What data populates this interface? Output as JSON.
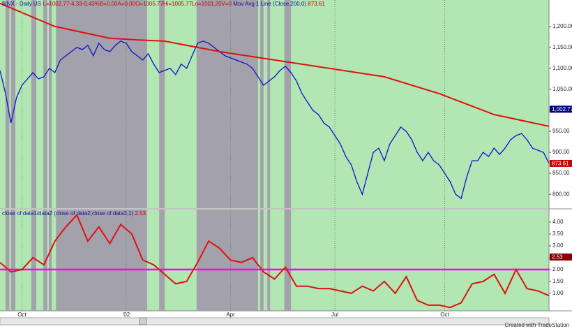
{
  "header": {
    "quote": "- Daily  US",
    "items": [
      "L=1002.77",
      "-4.33",
      "-0.43%",
      "B=0.00",
      "A=0.00",
      "O=1005.77",
      "Hi=1005.77",
      "Lo=1001.20",
      "V=0"
    ],
    "last": "873.61"
  },
  "footer": "Created with TradeStation",
  "chart_data": [
    {
      "type": "line",
      "xlim": [
        0,
        100
      ],
      "ylim": [
        767,
        1263
      ],
      "yticks": [
        {
          "value": 800,
          "label": "800.00"
        },
        {
          "value": 850,
          "label": "850.00"
        },
        {
          "value": 900,
          "label": "900.00"
        },
        {
          "value": 950,
          "label": "950.00"
        },
        {
          "value": 1000,
          "label": "1,000.00"
        },
        {
          "value": 1050,
          "label": "1,050.00"
        },
        {
          "value": 1100,
          "label": "1,100.00"
        },
        {
          "value": 1150,
          "label": "1,150.00"
        },
        {
          "value": 1200,
          "label": "1,200.00"
        }
      ],
      "shaded": [
        [
          1.0,
          1.7
        ],
        [
          2.0,
          2.8
        ],
        [
          5.7,
          6.6
        ],
        [
          7.9,
          8.6
        ],
        [
          8.9,
          9.4
        ],
        [
          10.2,
          26.8
        ],
        [
          29.0,
          30.0
        ],
        [
          35.8,
          47.0
        ],
        [
          47.4,
          48.0
        ],
        [
          48.7,
          49.2
        ],
        [
          51.8,
          53.0
        ]
      ],
      "series": [
        {
          "name": "$INX",
          "color": "#1010d0",
          "x": [
            0,
            1,
            2,
            3,
            4,
            5,
            6,
            7,
            8,
            9,
            10,
            11,
            12,
            13,
            14,
            15,
            16,
            17,
            18,
            19,
            20,
            21,
            22,
            23,
            24,
            25,
            26,
            27,
            28,
            29,
            30,
            31,
            32,
            33,
            34,
            35,
            36,
            37,
            38,
            39,
            40,
            41,
            42,
            43,
            44,
            45,
            46,
            47,
            48,
            49,
            50,
            51,
            52,
            53,
            54,
            55,
            56,
            57,
            58,
            59,
            60,
            61,
            62,
            63,
            64,
            65,
            66,
            67,
            68,
            69,
            70,
            71,
            72,
            73,
            74,
            75,
            76,
            77,
            78,
            79,
            80,
            81,
            82,
            83,
            84,
            85,
            86,
            87,
            88,
            89,
            90,
            91,
            92,
            93,
            94,
            95,
            96,
            97,
            98,
            99,
            100
          ],
          "values": [
            1095,
            1040,
            970,
            1030,
            1060,
            1075,
            1090,
            1075,
            1080,
            1100,
            1090,
            1120,
            1130,
            1140,
            1150,
            1145,
            1155,
            1130,
            1160,
            1145,
            1140,
            1155,
            1165,
            1160,
            1140,
            1130,
            1120,
            1135,
            1110,
            1090,
            1095,
            1100,
            1085,
            1110,
            1100,
            1130,
            1160,
            1165,
            1160,
            1150,
            1140,
            1130,
            1125,
            1120,
            1115,
            1110,
            1100,
            1080,
            1060,
            1070,
            1080,
            1095,
            1105,
            1090,
            1070,
            1040,
            1020,
            1000,
            990,
            970,
            960,
            940,
            920,
            890,
            870,
            830,
            800,
            850,
            900,
            910,
            880,
            920,
            940,
            960,
            950,
            930,
            900,
            880,
            900,
            880,
            870,
            850,
            830,
            800,
            790,
            840,
            880,
            880,
            900,
            890,
            910,
            895,
            910,
            930,
            940,
            945,
            930,
            910,
            905,
            900,
            874
          ]
        },
        {
          "name": "Mov Avg 1 Line (Close,200,0)",
          "color": "#e01010",
          "x": [
            0,
            10,
            20,
            25,
            30,
            40,
            50,
            60,
            70,
            80,
            90,
            100
          ],
          "values": [
            1255,
            1200,
            1172,
            1168,
            1165,
            1140,
            1120,
            1100,
            1080,
            1040,
            990,
            962
          ]
        }
      ],
      "markers": [
        {
          "value": 1002.77,
          "label": "1,002.77",
          "color": "#000080"
        },
        {
          "value": 873.61,
          "label": "873.61",
          "color": "#cc0000"
        }
      ]
    },
    {
      "type": "line",
      "title": "close of data1/data2 (close of data2,close of data3,1)",
      "xlim": [
        0,
        100
      ],
      "ylim": [
        0.26,
        4.53
      ],
      "yticks": [
        {
          "value": 1,
          "label": "1.00"
        },
        {
          "value": 1.5,
          "label": "1.50"
        },
        {
          "value": 2,
          "label": "2.00"
        },
        {
          "value": 2.5,
          "label": "2.50"
        },
        {
          "value": 3,
          "label": "3.00"
        },
        {
          "value": 3.5,
          "label": "3.50"
        },
        {
          "value": 4,
          "label": "4.00"
        }
      ],
      "xticks": [
        {
          "value": 4,
          "label": "Oct"
        },
        {
          "value": 23,
          "label": "'02"
        },
        {
          "value": 42,
          "label": "Apr"
        },
        {
          "value": 61,
          "label": "Jul"
        },
        {
          "value": 81,
          "label": "Oct"
        }
      ],
      "hline": {
        "value": 2,
        "color": "#ff00ff"
      },
      "series": [
        {
          "name": "2.53",
          "color": "#e01010",
          "x": [
            0,
            2,
            4,
            6,
            8,
            10,
            12,
            14,
            16,
            18,
            20,
            22,
            24,
            26,
            28,
            30,
            32,
            34,
            36,
            38,
            40,
            42,
            44,
            46,
            48,
            50,
            52,
            54,
            56,
            58,
            60,
            62,
            64,
            66,
            68,
            70,
            72,
            74,
            76,
            78,
            80,
            82,
            84,
            86,
            88,
            90,
            92,
            94,
            96,
            98,
            100
          ],
          "values": [
            2.3,
            1.9,
            2.0,
            2.5,
            2.2,
            3.2,
            3.8,
            4.3,
            3.2,
            3.8,
            3.1,
            3.9,
            3.5,
            2.4,
            2.2,
            1.8,
            1.4,
            1.5,
            2.3,
            3.2,
            2.9,
            2.4,
            2.3,
            2.5,
            1.9,
            1.6,
            2.1,
            1.3,
            1.3,
            1.2,
            1.2,
            1.1,
            1.0,
            1.3,
            1.1,
            1.5,
            1.0,
            1.7,
            0.7,
            0.5,
            0.5,
            0.4,
            0.6,
            1.4,
            1.5,
            1.8,
            1.0,
            2.0,
            1.2,
            1.1,
            0.9
          ]
        }
      ],
      "markers": [
        {
          "value": 2.53,
          "label": "2.53",
          "color": "#8b0000"
        }
      ]
    }
  ]
}
